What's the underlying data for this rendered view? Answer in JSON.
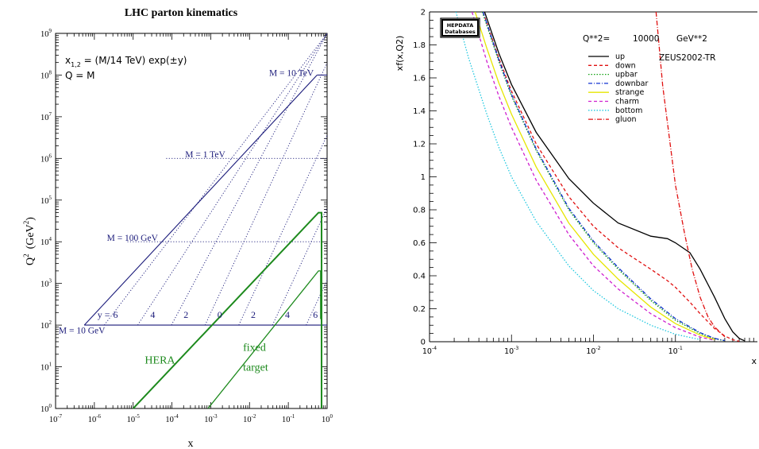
{
  "colors": {
    "navy": "#1a1a7a",
    "green": "#1d8a1d",
    "title_red": "#8b1010",
    "black": "#000000"
  },
  "chart_data": [
    {
      "type": "line",
      "title": "LHC parton kinematics",
      "xlabel": "x",
      "ylabel_main": "Q",
      "ylabel_exp": "2",
      "ylabel_unit": "(GeV",
      "ylabel_unit_exp": "2",
      "ylabel_close": ")",
      "xscale": "log",
      "yscale": "log",
      "xlim": [
        1e-07,
        1
      ],
      "ylim": [
        1,
        1000000000.0
      ],
      "xticks": [
        {
          "value": 1e-07,
          "base": "10",
          "exp": "-7"
        },
        {
          "value": 1e-06,
          "base": "10",
          "exp": "-6"
        },
        {
          "value": 1e-05,
          "base": "10",
          "exp": "-5"
        },
        {
          "value": 0.0001,
          "base": "10",
          "exp": "-4"
        },
        {
          "value": 0.001,
          "base": "10",
          "exp": "-3"
        },
        {
          "value": 0.01,
          "base": "10",
          "exp": "-2"
        },
        {
          "value": 0.1,
          "base": "10",
          "exp": "-1"
        },
        {
          "value": 1,
          "base": "10",
          "exp": "0"
        }
      ],
      "yticks": [
        {
          "value": 1,
          "base": "10",
          "exp": "0"
        },
        {
          "value": 10,
          "base": "10",
          "exp": "1"
        },
        {
          "value": 100,
          "base": "10",
          "exp": "2"
        },
        {
          "value": 1000,
          "base": "10",
          "exp": "3"
        },
        {
          "value": 10000,
          "base": "10",
          "exp": "4"
        },
        {
          "value": 100000,
          "base": "10",
          "exp": "5"
        },
        {
          "value": 1000000,
          "base": "10",
          "exp": "6"
        },
        {
          "value": 10000000,
          "base": "10",
          "exp": "7"
        },
        {
          "value": 100000000,
          "base": "10",
          "exp": "8"
        },
        {
          "value": 1000000000,
          "base": "10",
          "exp": "9"
        }
      ],
      "formula": {
        "line1_prefix": "x",
        "line1_sub": "1,2",
        "line1_rest": " = (M/14 TeV) exp(±y)",
        "line2": "Q = M"
      },
      "mass_labels": [
        {
          "text": "M = 10 TeV",
          "x": 0.032,
          "y": 95000000
        },
        {
          "text": "M = 1 TeV",
          "x": 0.00022,
          "y": 1050000
        },
        {
          "text": "M = 100 GeV",
          "x": 2.1e-06,
          "y": 10500
        },
        {
          "text": "M = 10 GeV",
          "x": 1.2e-07,
          "y": 63
        }
      ],
      "rapidity_prefix": {
        "text": "y =",
        "x": 1.2e-06,
        "y": 150
      },
      "rapidity_labels": [
        {
          "text": "6",
          "x": 3.5e-06,
          "y": 150
        },
        {
          "text": "4",
          "x": 3.2e-05,
          "y": 150
        },
        {
          "text": "2",
          "x": 0.00023,
          "y": 150
        },
        {
          "text": "0",
          "x": 0.0017,
          "y": 150
        },
        {
          "text": "2",
          "x": 0.0125,
          "y": 150
        },
        {
          "text": "4",
          "x": 0.095,
          "y": 150
        },
        {
          "text": "6",
          "x": 0.5,
          "y": 150
        }
      ],
      "kinematic_region": {
        "lower_boundary": [
          [
            5.5e-07,
            100
          ],
          [
            1,
            100
          ]
        ],
        "upper_boundary": [
          [
            5.5e-07,
            100
          ],
          [
            0.55,
            100000000
          ]
        ],
        "top_edge": [
          [
            0.55,
            100000000
          ],
          [
            1,
            100000000
          ]
        ]
      },
      "mass_lines": [
        {
          "mass_gev": 100,
          "q2": 10000,
          "x_range": [
            7.1e-06,
            0.71
          ]
        },
        {
          "mass_gev": 1000,
          "q2": 1000000,
          "x_range": [
            7.1e-05,
            1
          ]
        }
      ],
      "rapidity_lines": [
        {
          "y": 6,
          "x_at_q2_100": 1.8e-06
        },
        {
          "y": 4,
          "x_at_q2_100": 1.31e-05
        },
        {
          "y": 2,
          "x_at_q2_100": 9.67e-05
        },
        {
          "y": 0,
          "x_at_q2_100": 0.000714
        },
        {
          "y": -2,
          "x_at_q2_100": 0.00528
        },
        {
          "y": -4,
          "x_at_q2_100": 0.039
        },
        {
          "y": -6,
          "x_at_q2_100": 0.288
        }
      ],
      "regions": [
        {
          "text": "HERA",
          "x": 2e-05,
          "y": 12
        },
        {
          "text": "fixed",
          "x": 0.0068,
          "y": 24
        },
        {
          "text": "target",
          "x": 0.0068,
          "y": 8
        }
      ],
      "hera_boundary": [
        [
          1e-05,
          1
        ],
        [
          0.6,
          50000
        ],
        [
          0.72,
          50000
        ],
        [
          0.72,
          4000
        ]
      ],
      "fixed_target_boundary": [
        [
          0.00085,
          1
        ],
        [
          0.6,
          2000
        ],
        [
          0.68,
          2000
        ],
        [
          0.68,
          140
        ]
      ],
      "fixed_target_right_edge": [
        [
          0.72,
          4000
        ],
        [
          0.72,
          1
        ]
      ]
    },
    {
      "type": "line",
      "xlabel": "x",
      "ylabel": "xf(x,Q2)",
      "xscale": "log",
      "xlim": [
        0.0001,
        1
      ],
      "ylim": [
        0,
        2
      ],
      "xticks": [
        {
          "value": 0.0001,
          "base": "10",
          "exp": "-4"
        },
        {
          "value": 0.001,
          "base": "10",
          "exp": "-3"
        },
        {
          "value": 0.01,
          "base": "10",
          "exp": "-2"
        },
        {
          "value": 0.1,
          "base": "10",
          "exp": "-1"
        }
      ],
      "yticks": [
        {
          "value": 0,
          "label": "0"
        },
        {
          "value": 0.2,
          "label": "0.2"
        },
        {
          "value": 0.4,
          "label": "0.4"
        },
        {
          "value": 0.6,
          "label": "0.6"
        },
        {
          "value": 0.8,
          "label": "0.8"
        },
        {
          "value": 1,
          "label": "1"
        },
        {
          "value": 1.2,
          "label": "1.2"
        },
        {
          "value": 1.4,
          "label": "1.4"
        },
        {
          "value": 1.6,
          "label": "1.6"
        },
        {
          "value": 1.8,
          "label": "1.8"
        },
        {
          "value": 2,
          "label": "2"
        }
      ],
      "logo": {
        "line1": "HEPDATA",
        "line2": "Databases"
      },
      "q2_label": "Q**2=",
      "q2_value": "10000",
      "q2_unit": "GeV**2",
      "pdf_set": "ZEUS2002-TR",
      "legend_placement": "top-right",
      "series": [
        {
          "name": "up",
          "color": "#000000",
          "dash": "",
          "x": [
            0.00047,
            0.0007,
            0.001,
            0.002,
            0.005,
            0.01,
            0.02,
            0.05,
            0.08,
            0.1,
            0.15,
            0.2,
            0.3,
            0.4,
            0.5,
            0.6,
            0.7
          ],
          "y": [
            2.0,
            1.75,
            1.56,
            1.27,
            0.99,
            0.84,
            0.72,
            0.64,
            0.625,
            0.6,
            0.54,
            0.44,
            0.27,
            0.14,
            0.06,
            0.02,
            0.005
          ]
        },
        {
          "name": "down",
          "color": "#e01010",
          "dash": "4,3",
          "x": [
            0.00045,
            0.0007,
            0.001,
            0.002,
            0.005,
            0.01,
            0.02,
            0.05,
            0.08,
            0.1,
            0.15,
            0.2,
            0.3,
            0.4,
            0.5,
            0.6
          ],
          "y": [
            2.0,
            1.72,
            1.52,
            1.2,
            0.88,
            0.7,
            0.57,
            0.44,
            0.37,
            0.33,
            0.24,
            0.17,
            0.08,
            0.035,
            0.012,
            0.003
          ]
        },
        {
          "name": "upbar",
          "color": "#10a010",
          "dash": "1.5,2",
          "x": [
            0.00044,
            0.0007,
            0.001,
            0.002,
            0.005,
            0.01,
            0.02,
            0.05,
            0.1,
            0.2,
            0.3,
            0.4
          ],
          "y": [
            2.0,
            1.7,
            1.49,
            1.16,
            0.8,
            0.6,
            0.44,
            0.25,
            0.13,
            0.05,
            0.018,
            0.006
          ]
        },
        {
          "name": "downbar",
          "color": "#1030d0",
          "dash": "5,2,1,2",
          "x": [
            0.00045,
            0.0007,
            0.001,
            0.002,
            0.005,
            0.01,
            0.02,
            0.05,
            0.1,
            0.2,
            0.3,
            0.4
          ],
          "y": [
            2.0,
            1.71,
            1.5,
            1.17,
            0.81,
            0.61,
            0.45,
            0.26,
            0.14,
            0.055,
            0.02,
            0.007
          ]
        },
        {
          "name": "strange",
          "color": "#e6e600",
          "dash": "",
          "x": [
            0.00036,
            0.0005,
            0.0007,
            0.001,
            0.002,
            0.005,
            0.01,
            0.02,
            0.05,
            0.1,
            0.2,
            0.3
          ],
          "y": [
            2.0,
            1.78,
            1.57,
            1.38,
            1.06,
            0.72,
            0.53,
            0.38,
            0.21,
            0.11,
            0.04,
            0.013
          ]
        },
        {
          "name": "charm",
          "color": "#d020d0",
          "dash": "4,3",
          "x": [
            0.00033,
            0.0005,
            0.0007,
            0.001,
            0.002,
            0.005,
            0.01,
            0.02,
            0.05,
            0.1,
            0.2,
            0.3
          ],
          "y": [
            2.0,
            1.7,
            1.49,
            1.3,
            0.98,
            0.65,
            0.46,
            0.32,
            0.17,
            0.085,
            0.028,
            0.009
          ]
        },
        {
          "name": "bottom",
          "color": "#20c8e0",
          "dash": "1.5,2",
          "x": [
            0.00021,
            0.0003,
            0.0005,
            0.0007,
            0.001,
            0.002,
            0.005,
            0.01,
            0.02,
            0.05,
            0.1,
            0.2
          ],
          "y": [
            2.0,
            1.72,
            1.38,
            1.18,
            1.0,
            0.73,
            0.46,
            0.31,
            0.2,
            0.1,
            0.045,
            0.013
          ]
        },
        {
          "name": "gluon",
          "color": "#e01010",
          "dash": "6,2,1,2",
          "x": [
            0.058,
            0.07,
            0.1,
            0.13,
            0.16,
            0.2,
            0.25,
            0.3,
            0.4
          ],
          "y": [
            2.0,
            1.55,
            0.95,
            0.65,
            0.44,
            0.27,
            0.15,
            0.09,
            0.03
          ]
        }
      ]
    }
  ]
}
